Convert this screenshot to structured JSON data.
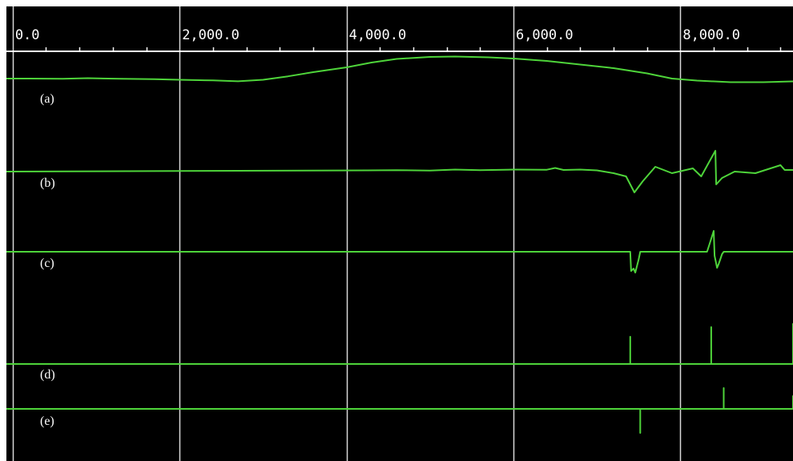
{
  "chart_data": {
    "type": "line",
    "title": "",
    "xlabel": "",
    "ylabel": "",
    "xlim": [
      -75,
      9350
    ],
    "grid": true,
    "x_ticks": [
      {
        "value": 0,
        "label": "0.0"
      },
      {
        "value": 2000,
        "label": "2,000.0"
      },
      {
        "value": 4000,
        "label": "4,000.0"
      },
      {
        "value": 6000,
        "label": "6,000.0"
      },
      {
        "value": 8000,
        "label": "8,000.0"
      }
    ],
    "minor_tick_step": 400,
    "colors": {
      "background": "#000000",
      "trace": "#4ed43a",
      "grid": "#d8d8d8",
      "ruler": "#ffffff",
      "text": "#ffffff"
    },
    "series": [
      {
        "label": "(a)",
        "x": [
          -75,
          200,
          600,
          900,
          1300,
          1700,
          2000,
          2400,
          2700,
          3000,
          3300,
          3600,
          4000,
          4300,
          4600,
          5000,
          5300,
          5700,
          6000,
          6400,
          6800,
          7200,
          7600,
          7900,
          8200,
          8600,
          9000,
          9350
        ],
        "y": [
          0,
          0,
          -0.2,
          0.5,
          -0.3,
          -0.8,
          -1.5,
          -2.3,
          -3.4,
          -1.5,
          2.8,
          8,
          14,
          20,
          24.5,
          27,
          27.5,
          26.5,
          25,
          22,
          17.5,
          13,
          6.5,
          0,
          -2.5,
          -4.5,
          -4.5,
          -3.5
        ]
      },
      {
        "label": "(b)",
        "x": [
          -75,
          4250,
          4600,
          5000,
          5300,
          5600,
          6000,
          6400,
          6500,
          6600,
          6800,
          7000,
          7200,
          7350,
          7450,
          7550,
          7700,
          7900,
          8150,
          8250,
          8420,
          8430,
          8500,
          8650,
          8900,
          9200,
          9250,
          9350
        ],
        "y": [
          0,
          1.5,
          1.8,
          1.2,
          2.5,
          1.8,
          2.5,
          2.3,
          4.5,
          2,
          2.5,
          1.5,
          -2,
          -6,
          -26,
          -12,
          6,
          -2,
          4,
          -6,
          26,
          -16,
          -8,
          0,
          -2,
          8,
          2,
          2
        ]
      },
      {
        "label": "(c)",
        "x": [
          -75,
          7400,
          7410,
          7440,
          7460,
          7500,
          7520,
          8320,
          8345,
          8400,
          8410,
          8440,
          8460,
          8500,
          8520,
          9340,
          9350
        ],
        "y": [
          0,
          0,
          -24,
          -21,
          -26,
          -10,
          0,
          0,
          8,
          26,
          -5,
          -20,
          -15,
          -3,
          0,
          0,
          0
        ]
      },
      {
        "label": "(d)",
        "x": [
          -75,
          7400,
          7400,
          7400,
          8370,
          8370,
          8370,
          9430,
          9430,
          9430,
          9350
        ],
        "y": [
          0,
          0,
          34,
          0,
          0,
          46,
          0,
          0,
          50,
          0,
          0
        ]
      },
      {
        "label": "(e)",
        "x": [
          -75,
          7520,
          7520,
          7520,
          8520,
          8520,
          8520,
          9500,
          9500,
          9500,
          9350
        ],
        "y": [
          0,
          0,
          -30,
          0,
          0,
          26,
          0,
          0,
          16,
          0,
          0
        ]
      }
    ]
  }
}
